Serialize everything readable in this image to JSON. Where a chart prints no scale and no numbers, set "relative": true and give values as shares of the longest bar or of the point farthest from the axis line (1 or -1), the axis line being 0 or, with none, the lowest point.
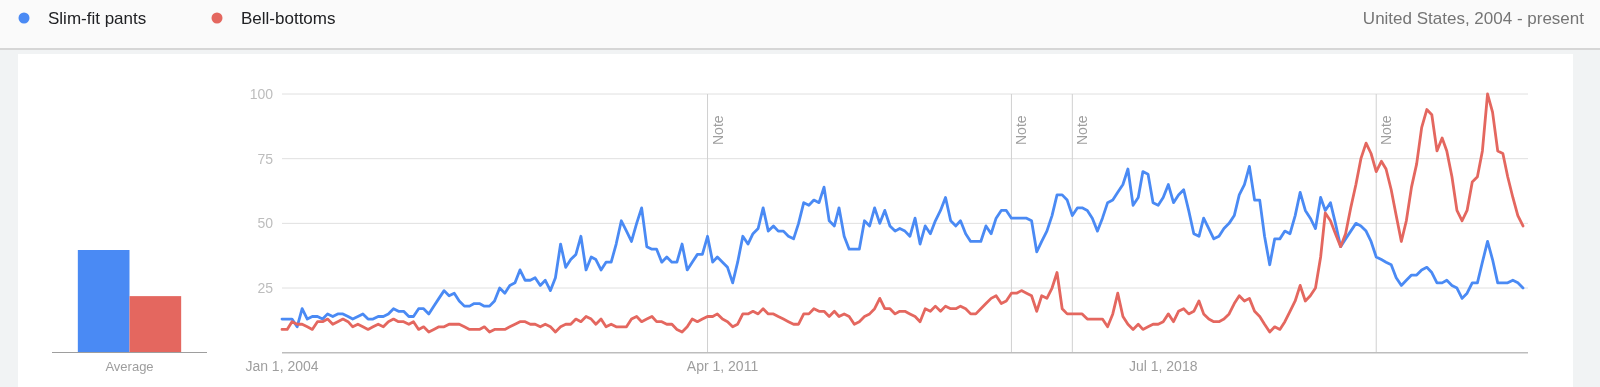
{
  "chart_data": [
    {
      "type": "bar",
      "relative": true,
      "categories": [
        "Average"
      ],
      "series": [
        {
          "color": "#4a8af4",
          "values": [
            1
          ]
        },
        {
          "color": "#e4675f",
          "values": [
            0.55
          ]
        }
      ]
    },
    {
      "type": "line",
      "subtitle": "United States, 2004 - present",
      "legend": "top",
      "grid": "y",
      "xlim": [
        "2004-01",
        "2024-07"
      ],
      "xticks": [
        {
          "value": "2004-01-01",
          "label": "Jan 1, 2004"
        },
        {
          "value": "2011-04-01",
          "label": "Apr 1, 2011"
        },
        {
          "value": "2018-07-01",
          "label": "Jul 1, 2018"
        }
      ],
      "ylim": [
        0,
        100
      ],
      "yticks": [
        25,
        50,
        75,
        100
      ],
      "ref_lines": [
        {
          "axis": "x",
          "value": "2011-01",
          "label": "Note"
        },
        {
          "axis": "x",
          "value": "2016-01",
          "label": "Note"
        },
        {
          "axis": "x",
          "value": "2017-01",
          "label": "Note"
        },
        {
          "axis": "x",
          "value": "2022-01",
          "label": "Note"
        }
      ],
      "x": [
        "2004-01",
        "2004-02",
        "2004-03",
        "2004-04",
        "2004-05",
        "2004-06",
        "2004-07",
        "2004-08",
        "2004-09",
        "2004-10",
        "2004-11",
        "2004-12",
        "2005-01",
        "2005-02",
        "2005-03",
        "2005-04",
        "2005-05",
        "2005-06",
        "2005-07",
        "2005-08",
        "2005-09",
        "2005-10",
        "2005-11",
        "2005-12",
        "2006-01",
        "2006-02",
        "2006-03",
        "2006-04",
        "2006-05",
        "2006-06",
        "2006-07",
        "2006-08",
        "2006-09",
        "2006-10",
        "2006-11",
        "2006-12",
        "2007-01",
        "2007-02",
        "2007-03",
        "2007-04",
        "2007-05",
        "2007-06",
        "2007-07",
        "2007-08",
        "2007-09",
        "2007-10",
        "2007-11",
        "2007-12",
        "2008-01",
        "2008-02",
        "2008-03",
        "2008-04",
        "2008-05",
        "2008-06",
        "2008-07",
        "2008-08",
        "2008-09",
        "2008-10",
        "2008-11",
        "2008-12",
        "2009-01",
        "2009-02",
        "2009-03",
        "2009-04",
        "2009-05",
        "2009-06",
        "2009-07",
        "2009-08",
        "2009-09",
        "2009-10",
        "2009-11",
        "2009-12",
        "2010-01",
        "2010-02",
        "2010-03",
        "2010-04",
        "2010-05",
        "2010-06",
        "2010-07",
        "2010-08",
        "2010-09",
        "2010-10",
        "2010-11",
        "2010-12",
        "2011-01",
        "2011-02",
        "2011-03",
        "2011-04",
        "2011-05",
        "2011-06",
        "2011-07",
        "2011-08",
        "2011-09",
        "2011-10",
        "2011-11",
        "2011-12",
        "2012-01",
        "2012-02",
        "2012-03",
        "2012-04",
        "2012-05",
        "2012-06",
        "2012-07",
        "2012-08",
        "2012-09",
        "2012-10",
        "2012-11",
        "2012-12",
        "2013-01",
        "2013-02",
        "2013-03",
        "2013-04",
        "2013-05",
        "2013-06",
        "2013-07",
        "2013-08",
        "2013-09",
        "2013-10",
        "2013-11",
        "2013-12",
        "2014-01",
        "2014-02",
        "2014-03",
        "2014-04",
        "2014-05",
        "2014-06",
        "2014-07",
        "2014-08",
        "2014-09",
        "2014-10",
        "2014-11",
        "2014-12",
        "2015-01",
        "2015-02",
        "2015-03",
        "2015-04",
        "2015-05",
        "2015-06",
        "2015-07",
        "2015-08",
        "2015-09",
        "2015-10",
        "2015-11",
        "2015-12",
        "2016-01",
        "2016-02",
        "2016-03",
        "2016-04",
        "2016-05",
        "2016-06",
        "2016-07",
        "2016-08",
        "2016-09",
        "2016-10",
        "2016-11",
        "2016-12",
        "2017-01",
        "2017-02",
        "2017-03",
        "2017-04",
        "2017-05",
        "2017-06",
        "2017-07",
        "2017-08",
        "2017-09",
        "2017-10",
        "2017-11",
        "2017-12",
        "2018-01",
        "2018-02",
        "2018-03",
        "2018-04",
        "2018-05",
        "2018-06",
        "2018-07",
        "2018-08",
        "2018-09",
        "2018-10",
        "2018-11",
        "2018-12",
        "2019-01",
        "2019-02",
        "2019-03",
        "2019-04",
        "2019-05",
        "2019-06",
        "2019-07",
        "2019-08",
        "2019-09",
        "2019-10",
        "2019-11",
        "2019-12",
        "2020-01",
        "2020-02",
        "2020-03",
        "2020-04",
        "2020-05",
        "2020-06",
        "2020-07",
        "2020-08",
        "2020-09",
        "2020-10",
        "2020-11",
        "2020-12",
        "2021-01",
        "2021-02",
        "2021-03",
        "2021-04",
        "2021-05",
        "2021-06",
        "2021-07",
        "2021-08",
        "2021-09",
        "2021-10",
        "2021-11",
        "2021-12",
        "2022-01",
        "2022-02",
        "2022-03",
        "2022-04",
        "2022-05",
        "2022-06",
        "2022-07",
        "2022-08",
        "2022-09",
        "2022-10",
        "2022-11",
        "2022-12",
        "2023-01",
        "2023-02",
        "2023-03",
        "2023-04",
        "2023-05",
        "2023-06",
        "2023-07",
        "2023-08",
        "2023-09",
        "2023-10",
        "2023-11",
        "2023-12",
        "2024-01",
        "2024-02",
        "2024-03",
        "2024-04",
        "2024-05",
        "2024-06"
      ],
      "series": [
        {
          "name": "Slim-fit pants",
          "color": "#4a8af4",
          "values": [
            13,
            13,
            13,
            10,
            17,
            13,
            14,
            14,
            13,
            15,
            14,
            15,
            15,
            14,
            13,
            14,
            15,
            13,
            13,
            14,
            14,
            15,
            17,
            16,
            16,
            14,
            14,
            17,
            17,
            15,
            18,
            21,
            24,
            22,
            23,
            20,
            18,
            18,
            19,
            19,
            18,
            18,
            20,
            25,
            23,
            26,
            27,
            32,
            28,
            28,
            29,
            26,
            28,
            24,
            29,
            42,
            33,
            36,
            38,
            45,
            32,
            37,
            36,
            32,
            35,
            35,
            42,
            51,
            47,
            43,
            50,
            56,
            41,
            40,
            40,
            35,
            37,
            35,
            35,
            42,
            32,
            35,
            38,
            38,
            45,
            35,
            37,
            35,
            33,
            27,
            35,
            45,
            42,
            46,
            48,
            56,
            47,
            49,
            47,
            47,
            45,
            44,
            50,
            58,
            57,
            59,
            58,
            64,
            51,
            49,
            56,
            45,
            40,
            40,
            40,
            51,
            49,
            56,
            50,
            55,
            49,
            47,
            48,
            47,
            45,
            52,
            42,
            49,
            46,
            51,
            55,
            60,
            51,
            49,
            51,
            46,
            43,
            43,
            43,
            49,
            46,
            52,
            55,
            55,
            52,
            52,
            52,
            52,
            51,
            39,
            43,
            47,
            53,
            61,
            61,
            59,
            53,
            56,
            56,
            55,
            52,
            47,
            52,
            58,
            59,
            62,
            65,
            71,
            57,
            60,
            70,
            69,
            58,
            57,
            60,
            65,
            58,
            61,
            63,
            55,
            46,
            45,
            52,
            48,
            44,
            45,
            48,
            50,
            53,
            61,
            65,
            72,
            59,
            59,
            45,
            34,
            44,
            44,
            47,
            46,
            53,
            62,
            55,
            52,
            48,
            60,
            55,
            58,
            50,
            41,
            44,
            47,
            50,
            49,
            47,
            43,
            37,
            36,
            35,
            34,
            29,
            26,
            28,
            30,
            30,
            32,
            33,
            31,
            27,
            27,
            28,
            26,
            25,
            21,
            23,
            27,
            27,
            35,
            43,
            36,
            27,
            27,
            27,
            28,
            27,
            25
          ]
        },
        {
          "name": "Bell-bottoms",
          "color": "#e4675f",
          "values": [
            9,
            9,
            12,
            11,
            11,
            10,
            9,
            12,
            12,
            13,
            11,
            12,
            13,
            12,
            10,
            11,
            10,
            9,
            10,
            11,
            10,
            12,
            13,
            12,
            12,
            11,
            12,
            9,
            10,
            8,
            9,
            10,
            10,
            11,
            11,
            11,
            10,
            9,
            9,
            9,
            10,
            8,
            9,
            9,
            9,
            10,
            11,
            12,
            12,
            11,
            11,
            10,
            11,
            10,
            8,
            10,
            11,
            11,
            13,
            12,
            14,
            13,
            11,
            13,
            10,
            11,
            10,
            10,
            10,
            13,
            14,
            12,
            13,
            14,
            12,
            12,
            11,
            11,
            9,
            8,
            10,
            13,
            12,
            13,
            14,
            14,
            15,
            13,
            12,
            10,
            11,
            15,
            15,
            16,
            15,
            17,
            15,
            15,
            14,
            13,
            12,
            11,
            11,
            15,
            15,
            17,
            16,
            16,
            14,
            16,
            14,
            15,
            14,
            11,
            12,
            14,
            15,
            17,
            21,
            17,
            17,
            15,
            16,
            16,
            15,
            14,
            12,
            17,
            16,
            18,
            16,
            18,
            17,
            17,
            18,
            17,
            15,
            15,
            17,
            19,
            21,
            22,
            19,
            20,
            23,
            23,
            24,
            23,
            22,
            16,
            22,
            21,
            25,
            31,
            17,
            15,
            15,
            15,
            15,
            13,
            13,
            13,
            13,
            10,
            15,
            23,
            14,
            11,
            9,
            11,
            9,
            10,
            11,
            11,
            12,
            15,
            12,
            16,
            17,
            15,
            16,
            20,
            15,
            13,
            12,
            12,
            13,
            15,
            19,
            22,
            20,
            21,
            16,
            14,
            11,
            8,
            10,
            9,
            12,
            16,
            20,
            26,
            20,
            22,
            25,
            37,
            54,
            51,
            46,
            41,
            46,
            56,
            65,
            75,
            81,
            77,
            70,
            74,
            71,
            63,
            53,
            43,
            51,
            64,
            73,
            87,
            94,
            92,
            78,
            83,
            78,
            68,
            55,
            51,
            55,
            66,
            68,
            78,
            100,
            93,
            78,
            77,
            68,
            60,
            53,
            49
          ]
        }
      ]
    }
  ]
}
